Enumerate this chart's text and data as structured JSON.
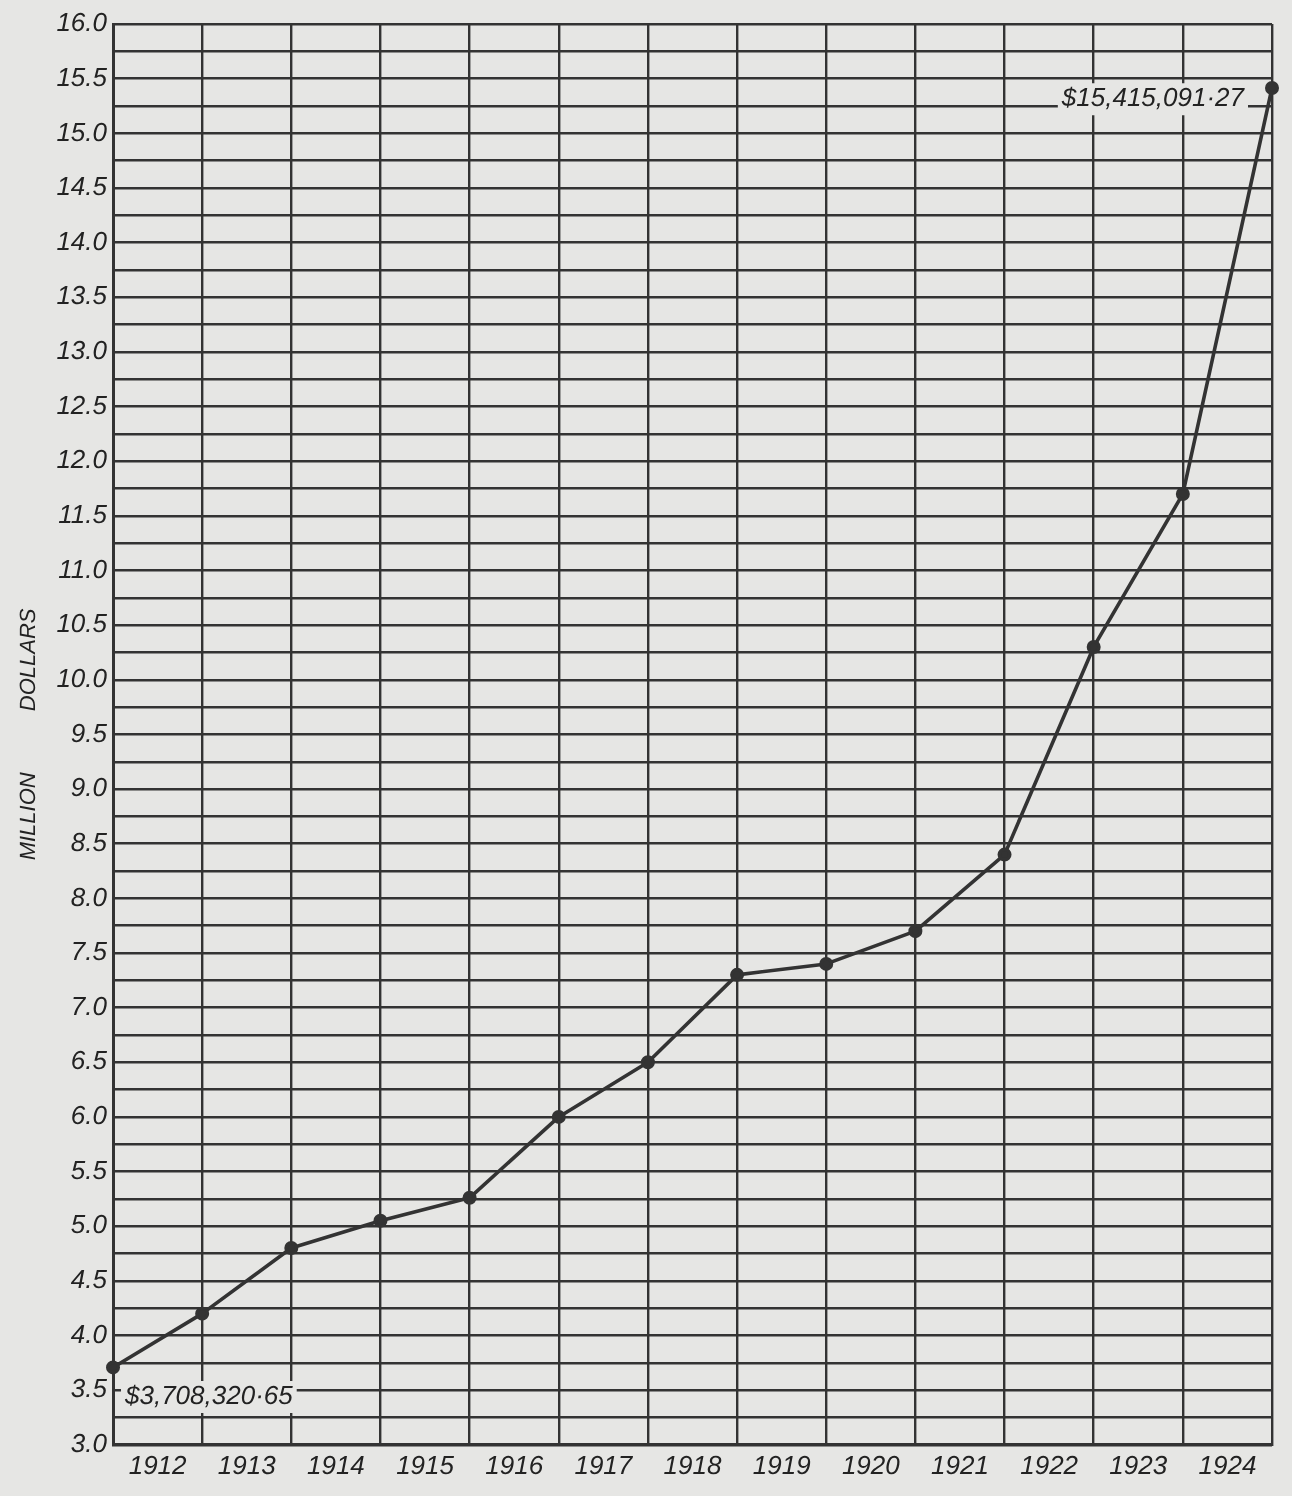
{
  "chart_data": {
    "type": "line",
    "ylabel": "MILLION          DOLLARS",
    "x": [
      1912,
      1913,
      1914,
      1915,
      1916,
      1917,
      1918,
      1919,
      1920,
      1921,
      1922,
      1923,
      1924,
      1925
    ],
    "series": [
      {
        "color": "#333333",
        "values": [
          3.708,
          4.2,
          4.8,
          5.05,
          5.26,
          6.0,
          6.5,
          7.3,
          7.4,
          7.7,
          8.4,
          10.3,
          11.7,
          15.415
        ]
      }
    ],
    "xlim": [
      1912,
      1925
    ],
    "xticks": [
      {
        "value": 1912,
        "label": null
      },
      {
        "value": 1912.5,
        "label": "1912"
      },
      {
        "value": 1913,
        "label": null
      },
      {
        "value": 1913.5,
        "label": "1913"
      },
      {
        "value": 1914,
        "label": null
      },
      {
        "value": 1914.5,
        "label": "1914"
      },
      {
        "value": 1915,
        "label": null
      },
      {
        "value": 1915.5,
        "label": "1915"
      },
      {
        "value": 1916,
        "label": null
      },
      {
        "value": 1916.5,
        "label": "1916"
      },
      {
        "value": 1917,
        "label": null
      },
      {
        "value": 1917.5,
        "label": "1917"
      },
      {
        "value": 1918,
        "label": null
      },
      {
        "value": 1918.5,
        "label": "1918"
      },
      {
        "value": 1919,
        "label": null
      },
      {
        "value": 1919.5,
        "label": "1919"
      },
      {
        "value": 1920,
        "label": null
      },
      {
        "value": 1920.5,
        "label": "1920"
      },
      {
        "value": 1921,
        "label": null
      },
      {
        "value": 1921.5,
        "label": "1921"
      },
      {
        "value": 1922,
        "label": null
      },
      {
        "value": 1922.5,
        "label": "1922"
      },
      {
        "value": 1923,
        "label": null
      },
      {
        "value": 1923.5,
        "label": "1923"
      },
      {
        "value": 1924,
        "label": null
      },
      {
        "value": 1924.5,
        "label": "1924"
      },
      {
        "value": 1925,
        "label": null
      }
    ],
    "ylim": [
      3.0,
      16.0
    ],
    "yticks": [
      {
        "value": 3,
        "label": "3.0"
      },
      {
        "value": 3.25,
        "label": null
      },
      {
        "value": 3.5,
        "label": "3.5"
      },
      {
        "value": 3.75,
        "label": null
      },
      {
        "value": 4,
        "label": "4.0"
      },
      {
        "value": 4.25,
        "label": null
      },
      {
        "value": 4.5,
        "label": "4.5"
      },
      {
        "value": 4.75,
        "label": null
      },
      {
        "value": 5,
        "label": "5.0"
      },
      {
        "value": 5.25,
        "label": null
      },
      {
        "value": 5.5,
        "label": "5.5"
      },
      {
        "value": 5.75,
        "label": null
      },
      {
        "value": 6,
        "label": "6.0"
      },
      {
        "value": 6.25,
        "label": null
      },
      {
        "value": 6.5,
        "label": "6.5"
      },
      {
        "value": 6.75,
        "label": null
      },
      {
        "value": 7,
        "label": "7.0"
      },
      {
        "value": 7.25,
        "label": null
      },
      {
        "value": 7.5,
        "label": "7.5"
      },
      {
        "value": 7.75,
        "label": null
      },
      {
        "value": 8,
        "label": "8.0"
      },
      {
        "value": 8.25,
        "label": null
      },
      {
        "value": 8.5,
        "label": "8.5"
      },
      {
        "value": 8.75,
        "label": null
      },
      {
        "value": 9,
        "label": "9.0"
      },
      {
        "value": 9.25,
        "label": null
      },
      {
        "value": 9.5,
        "label": "9.5"
      },
      {
        "value": 9.75,
        "label": null
      },
      {
        "value": 10,
        "label": "10.0"
      },
      {
        "value": 10.25,
        "label": null
      },
      {
        "value": 10.5,
        "label": "10.5"
      },
      {
        "value": 10.75,
        "label": null
      },
      {
        "value": 11,
        "label": "11.0"
      },
      {
        "value": 11.25,
        "label": null
      },
      {
        "value": 11.5,
        "label": "11.5"
      },
      {
        "value": 11.75,
        "label": null
      },
      {
        "value": 12,
        "label": "12.0"
      },
      {
        "value": 12.25,
        "label": null
      },
      {
        "value": 12.5,
        "label": "12.5"
      },
      {
        "value": 12.75,
        "label": null
      },
      {
        "value": 13,
        "label": "13.0"
      },
      {
        "value": 13.25,
        "label": null
      },
      {
        "value": 13.5,
        "label": "13.5"
      },
      {
        "value": 13.75,
        "label": null
      },
      {
        "value": 14,
        "label": "14.0"
      },
      {
        "value": 14.25,
        "label": null
      },
      {
        "value": 14.5,
        "label": "14.5"
      },
      {
        "value": 14.75,
        "label": null
      },
      {
        "value": 15,
        "label": "15.0"
      },
      {
        "value": 15.25,
        "label": null
      },
      {
        "value": 15.5,
        "label": "15.5"
      },
      {
        "value": 15.75,
        "label": null
      },
      {
        "value": 16,
        "label": "16.0"
      }
    ],
    "grid": true,
    "marker": "circle",
    "line_style": "solid",
    "legend": false,
    "annotations": [
      "$3,708,320·65",
      "$15,415,091·27"
    ]
  }
}
